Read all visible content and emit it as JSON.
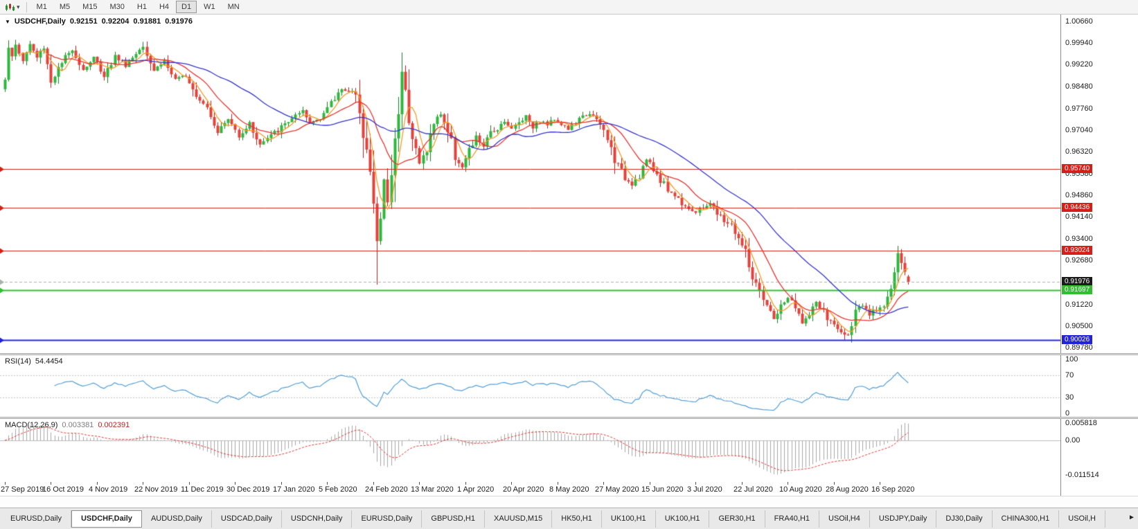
{
  "icons": {
    "expander": "▼",
    "caret": "▾"
  },
  "toolbar": {
    "timeframes": [
      {
        "label": "M1"
      },
      {
        "label": "M5"
      },
      {
        "label": "M15"
      },
      {
        "label": "M30"
      },
      {
        "label": "H1"
      },
      {
        "label": "H4"
      },
      {
        "label": "D1",
        "active": true
      },
      {
        "label": "W1"
      },
      {
        "label": "MN"
      }
    ]
  },
  "chart": {
    "title": {
      "symbol": "USDCHF,Daily",
      "open": "0.92151",
      "high": "0.92204",
      "low": "0.91881",
      "close": "0.91976"
    },
    "price_axis_labels": [
      "1.00660",
      "0.99940",
      "0.99220",
      "0.98480",
      "0.97760",
      "0.97040",
      "0.96320",
      "0.95580",
      "0.94860",
      "0.94140",
      "0.93400",
      "0.92680",
      "0.91220",
      "0.90500",
      "0.89780"
    ],
    "lines": [
      {
        "name": "resistance-1",
        "price": 0.9574,
        "label": "0.95740",
        "color": "#d5201a",
        "label_bg": "#d5201a",
        "width": 1,
        "style": "solid"
      },
      {
        "name": "resistance-2",
        "price": 0.94436,
        "label": "0.94436",
        "color": "#d5201a",
        "label_bg": "#d5201a",
        "width": 1,
        "style": "solid"
      },
      {
        "name": "resistance-3",
        "price": 0.93024,
        "label": "0.93024",
        "color": "#d5201a",
        "label_bg": "#d5201a",
        "width": 1,
        "style": "solid"
      },
      {
        "name": "current-price",
        "price": 0.91976,
        "label": "0.91976",
        "color": "#a9b3a9",
        "label_bg": "#1b1b1b",
        "width": 1,
        "style": "dash"
      },
      {
        "name": "support-1",
        "price": 0.91697,
        "label": "0.91697",
        "color": "#2fbf2f",
        "label_bg": "#2fbf2f",
        "width": 2,
        "style": "solid"
      },
      {
        "name": "support-2",
        "price": 0.90026,
        "label": "0.90026",
        "color": "#2222dd",
        "label_bg": "#2222dd",
        "width": 2,
        "style": "solid"
      }
    ]
  },
  "chart_data": {
    "type": "candlestick",
    "symbol": "USDCHF",
    "timeframe": "Daily",
    "bars": 256,
    "current_bar": {
      "open": 0.92151,
      "high": 0.92204,
      "low": 0.91881,
      "close": 0.91976
    },
    "y_axis": {
      "top": 1.0066,
      "bottom": 0.8978
    },
    "x_labels": [
      "27 Sep 2019",
      "16 Oct 2019",
      "4 Nov 2019",
      "22 Nov 2019",
      "11 Dec 2019",
      "30 Dec 2019",
      "17 Jan 2020",
      "5 Feb 2020",
      "24 Feb 2020",
      "13 Mar 2020",
      "1 Apr 2020",
      "20 Apr 2020",
      "8 May 2020",
      "27 May 2020",
      "15 Jun 2020",
      "3 Jul 2020",
      "22 Jul 2020",
      "10 Aug 2020",
      "28 Aug 2020",
      "16 Sep 2020"
    ],
    "x_label_indices": [
      0,
      13,
      26,
      39,
      52,
      65,
      78,
      91,
      104,
      117,
      130,
      143,
      156,
      169,
      182,
      195,
      208,
      221,
      234,
      247
    ],
    "price_waypoints": [
      [
        0,
        0.988
      ],
      [
        1,
        0.999
      ],
      [
        2,
        0.994
      ],
      [
        3,
        0.9985
      ],
      [
        5,
        0.9935
      ],
      [
        7,
        0.999
      ],
      [
        9,
        0.9945
      ],
      [
        11,
        0.9985
      ],
      [
        13,
        0.9865
      ],
      [
        16,
        0.9925
      ],
      [
        19,
        0.9975
      ],
      [
        22,
        0.9905
      ],
      [
        25,
        0.9945
      ],
      [
        28,
        0.9885
      ],
      [
        31,
        0.995
      ],
      [
        34,
        0.992
      ],
      [
        37,
        0.996
      ],
      [
        39,
        0.999
      ],
      [
        42,
        0.9905
      ],
      [
        45,
        0.9935
      ],
      [
        48,
        0.9868
      ],
      [
        51,
        0.989
      ],
      [
        54,
        0.9825
      ],
      [
        57,
        0.9785
      ],
      [
        60,
        0.97
      ],
      [
        63,
        0.974
      ],
      [
        66,
        0.9685
      ],
      [
        69,
        0.9725
      ],
      [
        72,
        0.9655
      ],
      [
        75,
        0.9685
      ],
      [
        78,
        0.9712
      ],
      [
        81,
        0.9745
      ],
      [
        84,
        0.9762
      ],
      [
        86,
        0.9725
      ],
      [
        89,
        0.975
      ],
      [
        92,
        0.979
      ],
      [
        95,
        0.9845
      ],
      [
        98,
        0.9825
      ],
      [
        100,
        0.9785
      ],
      [
        102,
        0.964
      ],
      [
        104,
        0.9455
      ],
      [
        105,
        0.933
      ],
      [
        106,
        0.941
      ],
      [
        107,
        0.9525
      ],
      [
        108,
        0.9465
      ],
      [
        109,
        0.956
      ],
      [
        110,
        0.9655
      ],
      [
        111,
        0.979
      ],
      [
        112,
        0.989
      ],
      [
        113,
        0.9855
      ],
      [
        114,
        0.9755
      ],
      [
        115,
        0.968
      ],
      [
        117,
        0.959
      ],
      [
        119,
        0.9645
      ],
      [
        121,
        0.9725
      ],
      [
        123,
        0.976
      ],
      [
        125,
        0.97
      ],
      [
        127,
        0.962
      ],
      [
        129,
        0.958
      ],
      [
        131,
        0.963
      ],
      [
        133,
        0.968
      ],
      [
        135,
        0.965
      ],
      [
        137,
        0.9692
      ],
      [
        139,
        0.9712
      ],
      [
        141,
        0.9736
      ],
      [
        143,
        0.9706
      ],
      [
        145,
        0.973
      ],
      [
        147,
        0.9752
      ],
      [
        149,
        0.9716
      ],
      [
        151,
        0.9736
      ],
      [
        153,
        0.9722
      ],
      [
        155,
        0.9742
      ],
      [
        157,
        0.9726
      ],
      [
        159,
        0.9706
      ],
      [
        161,
        0.973
      ],
      [
        163,
        0.9746
      ],
      [
        165,
        0.9762
      ],
      [
        167,
        0.9732
      ],
      [
        169,
        0.97
      ],
      [
        171,
        0.964
      ],
      [
        173,
        0.958
      ],
      [
        175,
        0.9545
      ],
      [
        177,
        0.9525
      ],
      [
        179,
        0.9556
      ],
      [
        181,
        0.9606
      ],
      [
        183,
        0.957
      ],
      [
        185,
        0.954
      ],
      [
        187,
        0.9506
      ],
      [
        189,
        0.9486
      ],
      [
        191,
        0.9462
      ],
      [
        193,
        0.9446
      ],
      [
        195,
        0.9426
      ],
      [
        197,
        0.9446
      ],
      [
        199,
        0.9462
      ],
      [
        201,
        0.9422
      ],
      [
        203,
        0.9402
      ],
      [
        205,
        0.9386
      ],
      [
        207,
        0.9342
      ],
      [
        209,
        0.9292
      ],
      [
        211,
        0.9212
      ],
      [
        213,
        0.9152
      ],
      [
        215,
        0.9112
      ],
      [
        217,
        0.9076
      ],
      [
        219,
        0.9112
      ],
      [
        221,
        0.9146
      ],
      [
        223,
        0.9106
      ],
      [
        225,
        0.9066
      ],
      [
        227,
        0.9082
      ],
      [
        229,
        0.9132
      ],
      [
        231,
        0.9092
      ],
      [
        233,
        0.9062
      ],
      [
        235,
        0.9042
      ],
      [
        237,
        0.9016
      ],
      [
        238,
        0.9032
      ],
      [
        240,
        0.9092
      ],
      [
        242,
        0.9116
      ],
      [
        244,
        0.9086
      ],
      [
        246,
        0.9106
      ],
      [
        248,
        0.9126
      ],
      [
        250,
        0.9172
      ],
      [
        251,
        0.9232
      ],
      [
        252,
        0.9282
      ],
      [
        253,
        0.9262
      ],
      [
        254,
        0.9222
      ],
      [
        255,
        0.91976
      ]
    ],
    "wick_lows": [
      [
        105,
        0.9188
      ],
      [
        237,
        0.9004
      ]
    ],
    "wick_highs": [
      [
        1,
        1.0003
      ],
      [
        39,
        0.9998
      ],
      [
        112,
        0.9921
      ],
      [
        252,
        0.9291
      ]
    ],
    "candle_colors": {
      "up_fill": "#2db83d",
      "up_stroke": "#157a22",
      "down_fill": "#e2423b",
      "down_stroke": "#a8201c"
    },
    "moving_averages": [
      {
        "name": "ma-fast",
        "period": 5,
        "color": "#f59a23"
      },
      {
        "name": "ma-medium",
        "period": 13,
        "color": "#e8332d"
      },
      {
        "name": "ma-slow",
        "period": 34,
        "color": "#3434cf"
      }
    ],
    "rsi": {
      "name": "RSI(14)",
      "value": "54.4454",
      "period": 14,
      "color": "#4f9ed9",
      "axis_labels": [
        "100",
        "70",
        "30",
        "0"
      ],
      "level_lines": [
        70,
        30
      ]
    },
    "macd": {
      "name": "MACD(12,26,9)",
      "macd_value": "0.003381",
      "signal_value": "0.002391",
      "fast": 12,
      "slow": 26,
      "signal": 9,
      "histogram_color": "#a6a6a6",
      "signal_color": "#e8332d",
      "axis_labels": [
        "0.005818",
        "0.00",
        "-0.011514"
      ]
    }
  },
  "tabs": {
    "items": [
      {
        "label": "EURUSD,Daily"
      },
      {
        "label": "USDCHF,Daily",
        "active": true
      },
      {
        "label": "AUDUSD,Daily"
      },
      {
        "label": "USDCAD,Daily"
      },
      {
        "label": "USDCNH,Daily"
      },
      {
        "label": "EURUSD,Daily"
      },
      {
        "label": "GBPUSD,H1"
      },
      {
        "label": "XAUUSD,M15"
      },
      {
        "label": "HK50,H1"
      },
      {
        "label": "UK100,H1"
      },
      {
        "label": "UK100,H1"
      },
      {
        "label": "GER30,H1"
      },
      {
        "label": "FRA40,H1"
      },
      {
        "label": "USOil,H4"
      },
      {
        "label": "USDJPY,Daily"
      },
      {
        "label": "DJ30,Daily"
      },
      {
        "label": "CHINA300,H1"
      },
      {
        "label": "USOil,H"
      }
    ],
    "scroll_right": "►"
  }
}
